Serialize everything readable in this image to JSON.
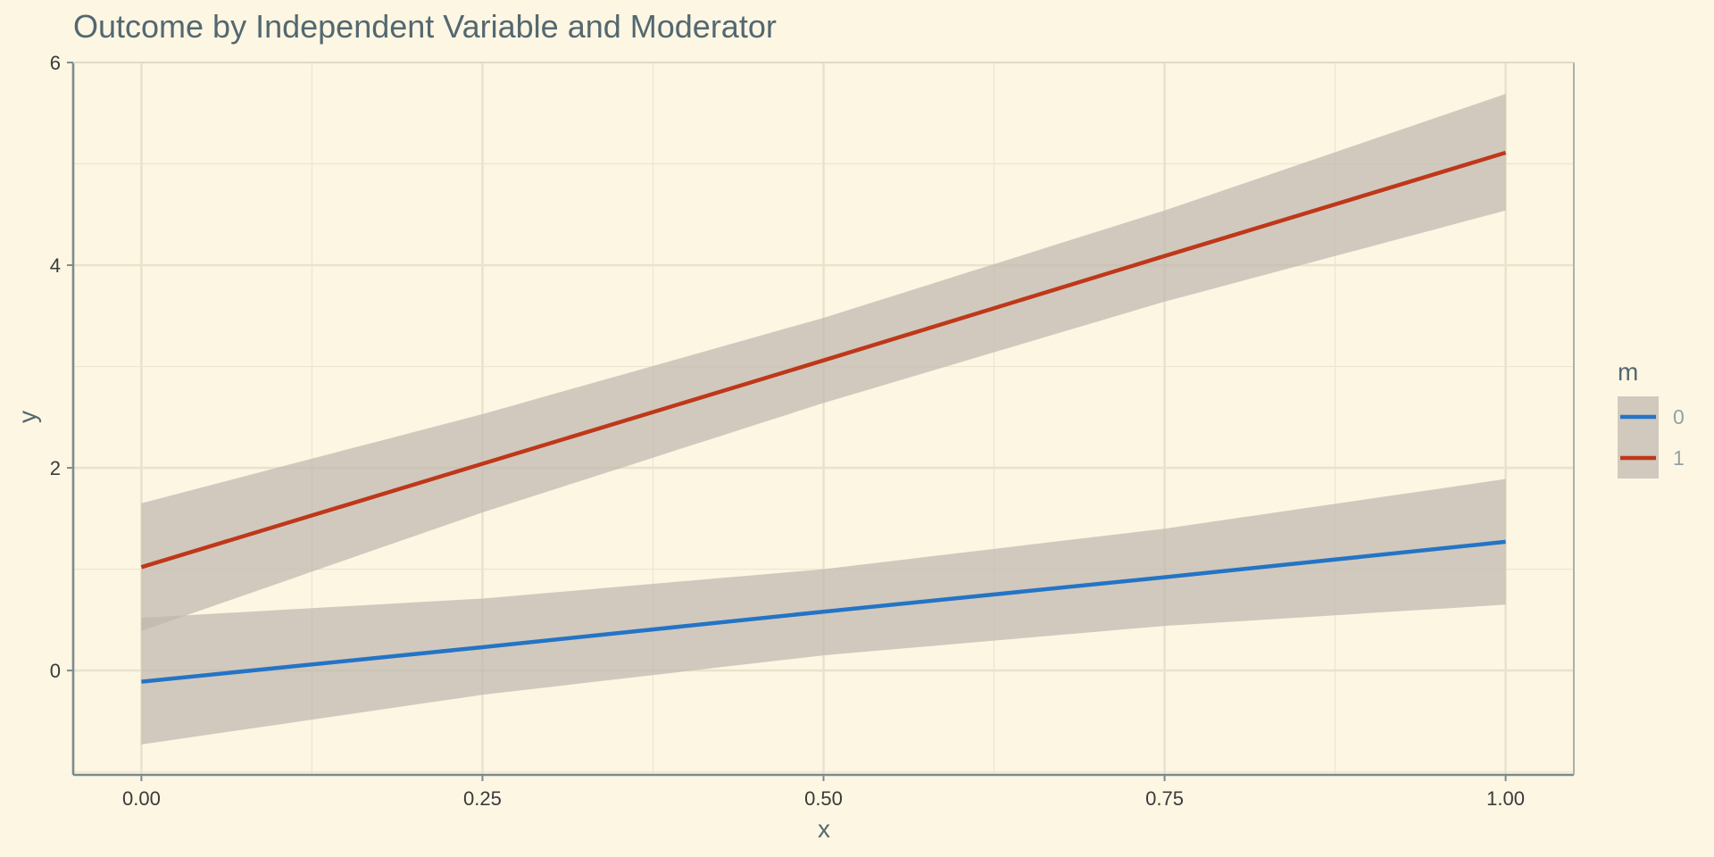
{
  "chart_data": {
    "type": "line",
    "title": "Outcome by Independent Variable and Moderator",
    "xlabel": "x",
    "ylabel": "y",
    "xlim": [
      -0.05,
      1.05
    ],
    "ylim": [
      -1.03,
      6.0
    ],
    "x_ticks": [
      0.0,
      0.25,
      0.5,
      0.75,
      1.0
    ],
    "x_tick_labels": [
      "0.00",
      "0.25",
      "0.50",
      "0.75",
      "1.00"
    ],
    "y_ticks": [
      0,
      2,
      4,
      6
    ],
    "y_tick_labels": [
      "0",
      "2",
      "4",
      "6"
    ],
    "grid": true,
    "legend": {
      "title": "m",
      "position": "right",
      "entries": [
        {
          "label": "0",
          "color": "#2474c6"
        },
        {
          "label": "1",
          "color": "#be3819"
        }
      ]
    },
    "series": [
      {
        "name": "0",
        "color": "#2474c6",
        "x": [
          0.0,
          0.25,
          0.5,
          0.75,
          1.0
        ],
        "y": [
          -0.11,
          0.23,
          0.58,
          0.92,
          1.27
        ],
        "lower": [
          -0.73,
          -0.24,
          0.15,
          0.44,
          0.65
        ],
        "upper": [
          0.52,
          0.71,
          1.0,
          1.4,
          1.89
        ]
      },
      {
        "name": "1",
        "color": "#be3819",
        "x": [
          0.0,
          0.25,
          0.5,
          0.75,
          1.0
        ],
        "y": [
          1.02,
          2.04,
          3.06,
          4.09,
          5.11
        ],
        "lower": [
          0.39,
          1.56,
          2.64,
          3.64,
          4.54
        ],
        "upper": [
          1.65,
          2.53,
          3.48,
          4.54,
          5.69
        ]
      }
    ]
  },
  "colors": {
    "background": "#fdf6e3",
    "gridline": "#ece6d0",
    "axis_line": "#7c8b8d",
    "ribbon": "#bdb7ad"
  }
}
